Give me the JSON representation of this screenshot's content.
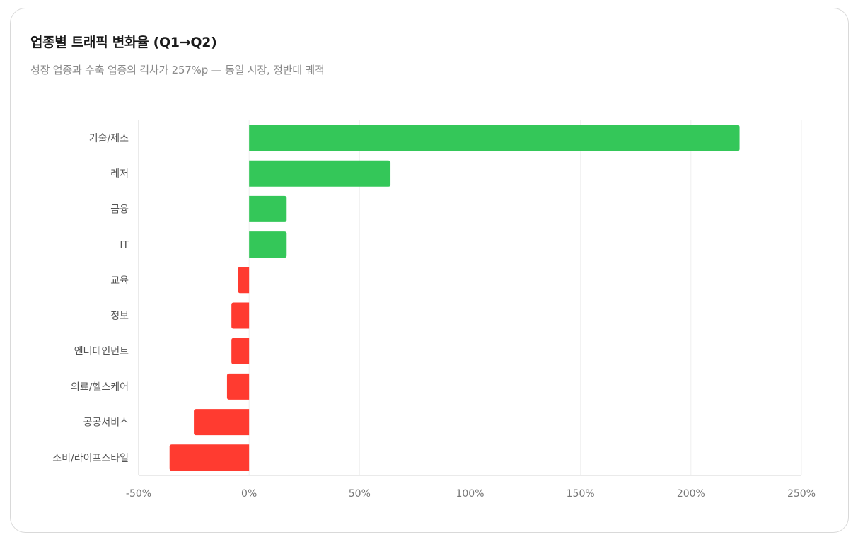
{
  "header": {
    "title": "업종별 트래픽 변화율 (Q1→Q2)",
    "subtitle": "성장 업종과 수축 업종의 격차가 257%p — 동일 시장, 정반대 궤적"
  },
  "colors": {
    "positive": "#34c759",
    "negative": "#ff3b30",
    "grid": "#efefef",
    "axis": "#d4d4d4"
  },
  "chart_data": {
    "type": "bar",
    "orientation": "horizontal",
    "categories": [
      "기술/제조",
      "레저",
      "금융",
      "IT",
      "교육",
      "정보",
      "엔터테인먼트",
      "의료/헬스케어",
      "공공서비스",
      "소비/라이프스타일"
    ],
    "values": [
      222,
      64,
      17,
      17,
      -5,
      -8,
      -8,
      -10,
      -25,
      -36
    ],
    "value_unit": "%",
    "xlim": [
      -50,
      250
    ],
    "xticks": [
      -50,
      0,
      50,
      100,
      150,
      200,
      250
    ],
    "xtick_labels": [
      "-50%",
      "0%",
      "50%",
      "100%",
      "150%",
      "200%",
      "250%"
    ],
    "grid": true
  }
}
